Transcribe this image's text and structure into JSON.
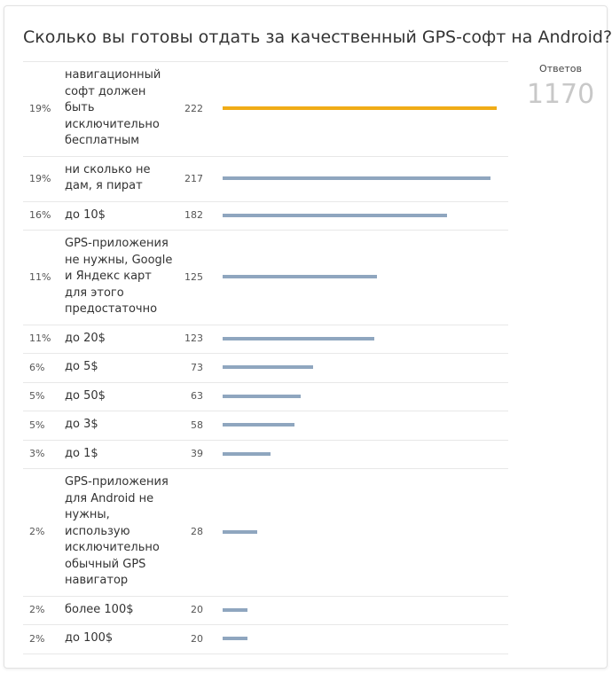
{
  "poll": {
    "title": "Сколько вы готовы отдать за качественный GPS-софт на Android?",
    "answers_label": "Ответов",
    "total": "1170",
    "bar_color": "#8fa6bf",
    "leader_color": "#f0ac17",
    "options": [
      {
        "percent": "19%",
        "label": "навигационный софт должен быть исключительно бесплатным",
        "votes": 222
      },
      {
        "percent": "19%",
        "label": "ни сколько не дам, я пират",
        "votes": 217
      },
      {
        "percent": "16%",
        "label": "до 10$",
        "votes": 182
      },
      {
        "percent": "11%",
        "label": "GPS-приложения не нужны, Google и Яндекс карт для этого предостаточно",
        "votes": 125
      },
      {
        "percent": "11%",
        "label": "до 20$",
        "votes": 123
      },
      {
        "percent": "6%",
        "label": "до 5$",
        "votes": 73
      },
      {
        "percent": "5%",
        "label": "до 50$",
        "votes": 63
      },
      {
        "percent": "5%",
        "label": "до 3$",
        "votes": 58
      },
      {
        "percent": "3%",
        "label": "до 1$",
        "votes": 39
      },
      {
        "percent": "2%",
        "label": "GPS-приложения для Android не нужны, использую исключительно обычный GPS навигатор",
        "votes": 28
      },
      {
        "percent": "2%",
        "label": "более 100$",
        "votes": 20
      },
      {
        "percent": "2%",
        "label": "до 100$",
        "votes": 20
      }
    ]
  }
}
